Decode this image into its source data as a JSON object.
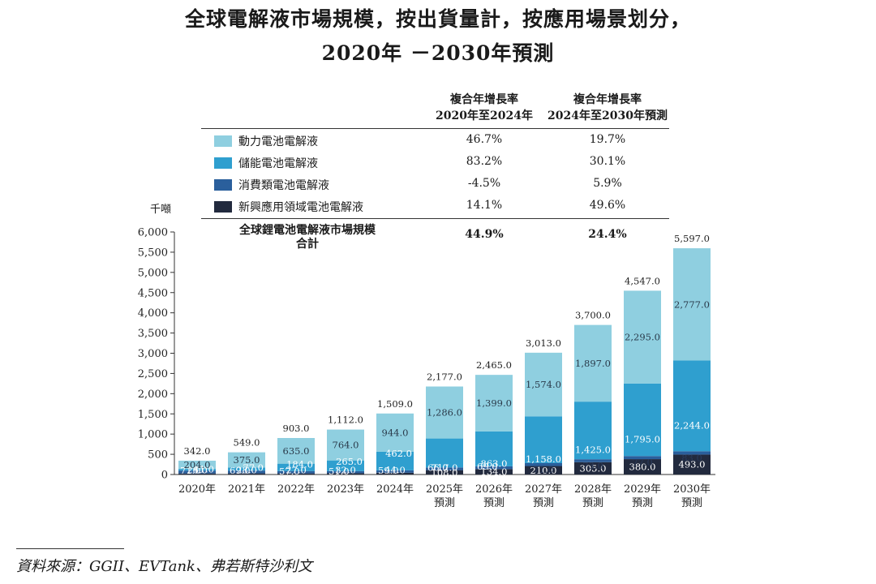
{
  "title_line1": "全球電解液市場規模，按出貨量計，按應用場景划分，",
  "title_line2": "2020年 －2030年預測",
  "cagr_headers": [
    {
      "line1": "複合年增長率",
      "line2": "2020年至2024年"
    },
    {
      "line1": "複合年增長率",
      "line2": "2024年至2030年預測"
    }
  ],
  "legend": [
    {
      "label": "動力電池電解液",
      "cagr1": "46.7%",
      "cagr2": "19.7%",
      "color": "#8fcfe0"
    },
    {
      "label": "儲能電池電解液",
      "cagr1": "83.2%",
      "cagr2": "30.1%",
      "color": "#2f9fcf"
    },
    {
      "label": "消費類電池電解液",
      "cagr1": "-4.5%",
      "cagr2": "5.9%",
      "color": "#2a5f9c"
    },
    {
      "label": "新興應用領域電池電解液",
      "cagr1": "14.1%",
      "cagr2": "49.6%",
      "color": "#222a3e"
    }
  ],
  "total_row": {
    "line1": "全球鋰電池電解液市場規模",
    "line2": "合計",
    "cagr1": "44.9%",
    "cagr2": "24.4%"
  },
  "unit_label": "千噸",
  "source": "資料來源：GGII、EVTank、弗若斯特沙利文",
  "chart_data": {
    "type": "bar",
    "stacked": true,
    "categories": [
      [
        "2020年"
      ],
      [
        "2021年"
      ],
      [
        "2022年"
      ],
      [
        "2023年"
      ],
      [
        "2024年"
      ],
      [
        "2025年",
        "預測"
      ],
      [
        "2026年",
        "預測"
      ],
      [
        "2027年",
        "預測"
      ],
      [
        "2028年",
        "預測"
      ],
      [
        "2029年",
        "預測"
      ],
      [
        "2030年",
        "預測"
      ]
    ],
    "series": [
      {
        "name": "新興應用領域電池電解液",
        "values": [
          26.0,
          28.0,
          27.0,
          32.0,
          44.0,
          108.0,
          134.0,
          210.0,
          305.0,
          380.0,
          493.0
        ],
        "labels": [
          "26.0",
          "28.0",
          "27.0",
          "32.0",
          "44.0",
          "108.0",
          "134.0",
          "210.0",
          "305.0",
          "380.0",
          "493.0"
        ]
      },
      {
        "name": "消費類電池電解液",
        "values": [
          71.0,
          69.0,
          57.0,
          51.0,
          59.0,
          66.0,
          69.0,
          71.0,
          73.0,
          77.0,
          83.0
        ],
        "labels": [
          "71.0",
          "69.0",
          "57.0",
          "51.0",
          "59.0",
          "66.0",
          "69.0",
          "71.0",
          "73.0",
          "77.0",
          "83.0"
        ]
      },
      {
        "name": "儲能電池電解液",
        "values": [
          41.0,
          77.0,
          184.0,
          265.0,
          462.0,
          717.0,
          863.0,
          1158.0,
          1425.0,
          1795.0,
          2244.0
        ],
        "labels": [
          "41.0",
          "77.0",
          "184.0",
          "265.0",
          "462.0",
          "717.0",
          "863.0",
          "1,158.0",
          "1,425.0",
          "1,795.0",
          "2,244.0"
        ]
      },
      {
        "name": "動力電池電解液",
        "values": [
          204.0,
          375.0,
          635.0,
          764.0,
          944.0,
          1286.0,
          1399.0,
          1574.0,
          1897.0,
          2295.0,
          2777.0
        ],
        "labels": [
          "204.0",
          "375.0",
          "635.0",
          "764.0",
          "944.0",
          "1,286.0",
          "1,399.0",
          "1,574.0",
          "1,897.0",
          "2,295.0",
          "2,777.0"
        ]
      }
    ],
    "totals": [
      342.0,
      549.0,
      903.0,
      1112.0,
      1509.0,
      2177.0,
      2465.0,
      3013.0,
      3700.0,
      4547.0,
      5597.0
    ],
    "total_labels": [
      "342.0",
      "549.0",
      "903.0",
      "1,112.0",
      "1,509.0",
      "2,177.0",
      "2,465.0",
      "3,013.0",
      "3,700.0",
      "4,547.0",
      "5,597.0"
    ],
    "ylim": [
      0,
      6000
    ],
    "yticks": [
      0,
      500,
      1000,
      1500,
      2000,
      2500,
      3000,
      3500,
      4000,
      4500,
      5000,
      5500,
      6000
    ],
    "ytick_labels": [
      "0",
      "500",
      "1,000",
      "1,500",
      "2,000",
      "2,500",
      "3,000",
      "3,500",
      "4,000",
      "4,500",
      "5,000",
      "5,500",
      "6,000"
    ],
    "ylabel": "千噸",
    "grid": false
  }
}
